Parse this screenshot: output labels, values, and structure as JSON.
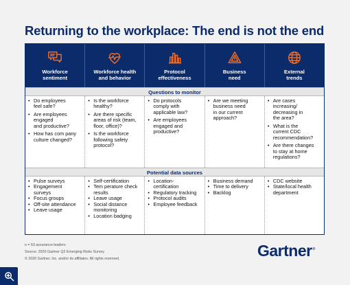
{
  "title": "Returning to the workplace: The end is not the end",
  "columns": [
    {
      "label": "Workforce\nsentiment",
      "icon": "chat-bubbles-icon"
    },
    {
      "label": "Workforce health\nand behavior",
      "icon": "heart-pulse-icon"
    },
    {
      "label": "Protocol\neffectiveness",
      "icon": "bar-chart-icon"
    },
    {
      "label": "Business\nneed",
      "icon": "warning-triangle-icon"
    },
    {
      "label": "External\ntrends",
      "icon": "globe-icon"
    }
  ],
  "sections": {
    "questions": "Questions to monitor",
    "data": "Potential data sources"
  },
  "questions": [
    [
      "Do employees\nfeel safe?",
      "Are employees\nengaged\nand productive?",
      "How has com pany\nculture changed?"
    ],
    [
      "Is the workforce\nhealthy?",
      "Are there specific\nareas of risk (team,\nfloor, office)?",
      "Is the workforce\nfollowing safety\nprotocol?"
    ],
    [
      "Do protocols\ncomply with\napplicable law?",
      "Are employees\nengaged and\nproductive?"
    ],
    [
      "Are we meeting\nbusiness need\nin our current\napproach?"
    ],
    [
      "Are cases\nincreasing/\ndecreasing in\nthe area?",
      "What is the\ncurrent CDC\nrecommendation?",
      "Are there changes\nto stay at home\nregulations?"
    ]
  ],
  "sources": [
    [
      "Pulse surveys",
      "Engagement\nsurveys",
      "Focus groups",
      "Off-site attendance",
      "Leave usage"
    ],
    [
      "Self-certification",
      "Tem perature check\nresults",
      "Leave usage",
      "Social distance\nmonitoring",
      "Location badging"
    ],
    [
      "Location-\ncertification",
      "Regulatory tracking",
      "Protocol audits",
      "Employee feedback"
    ],
    [
      "Business demand",
      "Time to delivery",
      "Backlog"
    ],
    [
      "CDC website",
      "State/local health\ndepartment"
    ]
  ],
  "footer": {
    "n": "n = 63 assurance leaders",
    "source": "Source: 2020 Gartner Q2 Emerging Risks Survey",
    "copyright": "© 2020 Gartner, Inc. and/or its affiliates. All rights reserved."
  },
  "logo": {
    "text": "Gartner",
    "mark": "®"
  },
  "colors": {
    "navy": "#0b2b6b",
    "accent": "#f36b21"
  },
  "zoom_icon": "zoom-in-icon"
}
